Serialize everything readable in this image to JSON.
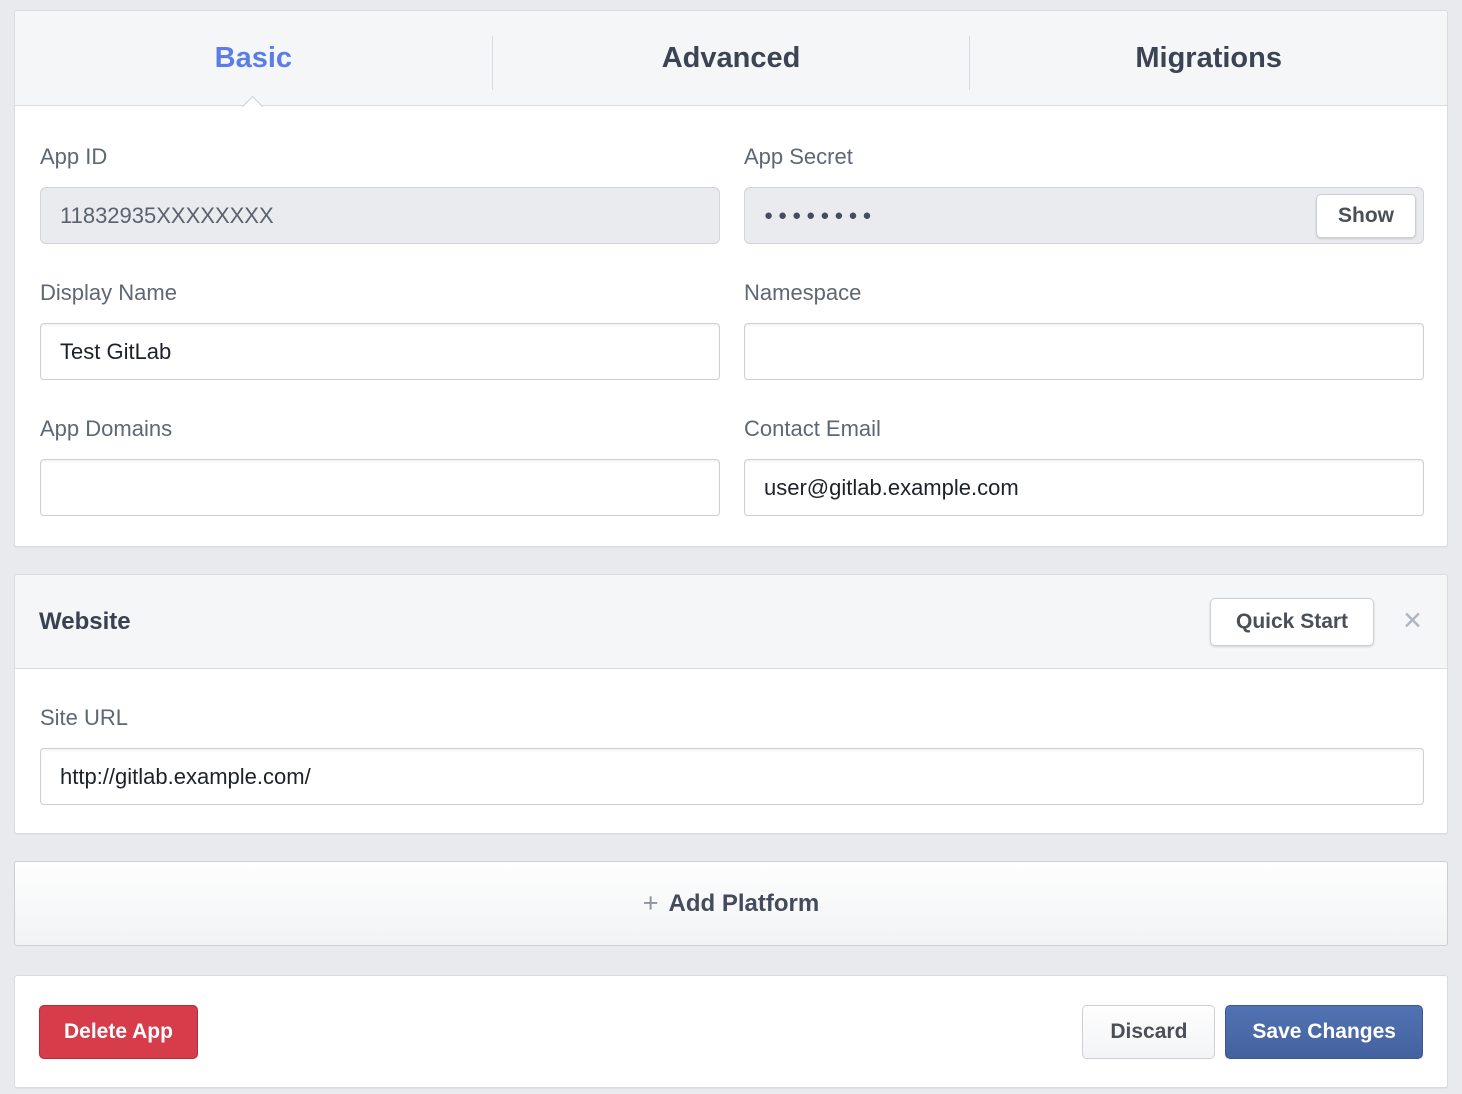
{
  "colors": {
    "accent_blue": "#5b7de8",
    "primary_button_blue": "#4664aa",
    "danger_red": "#d63c4a",
    "page_background": "#e9eaed",
    "section_header_background": "#f5f6f7"
  },
  "tabs": [
    {
      "label": "Basic",
      "active": true
    },
    {
      "label": "Advanced",
      "active": false
    },
    {
      "label": "Migrations",
      "active": false
    }
  ],
  "basic_settings": {
    "app_id": {
      "label": "App ID",
      "value": "11832935XXXXXXXX"
    },
    "app_secret": {
      "label": "App Secret",
      "masked_value": "●●●●●●●●",
      "show_button_label": "Show"
    },
    "display_name": {
      "label": "Display Name",
      "value": "Test GitLab"
    },
    "namespace": {
      "label": "Namespace",
      "value": ""
    },
    "app_domains": {
      "label": "App Domains",
      "value": ""
    },
    "contact_email": {
      "label": "Contact Email",
      "value": "user@gitlab.example.com"
    }
  },
  "website_section": {
    "title": "Website",
    "quick_start_button_label": "Quick Start",
    "close_icon": "✕",
    "site_url": {
      "label": "Site URL",
      "value": "http://gitlab.example.com/"
    }
  },
  "add_platform": {
    "plus_icon": "+",
    "label": "Add Platform"
  },
  "footer": {
    "delete_button_label": "Delete App",
    "discard_button_label": "Discard",
    "save_button_label": "Save Changes"
  }
}
